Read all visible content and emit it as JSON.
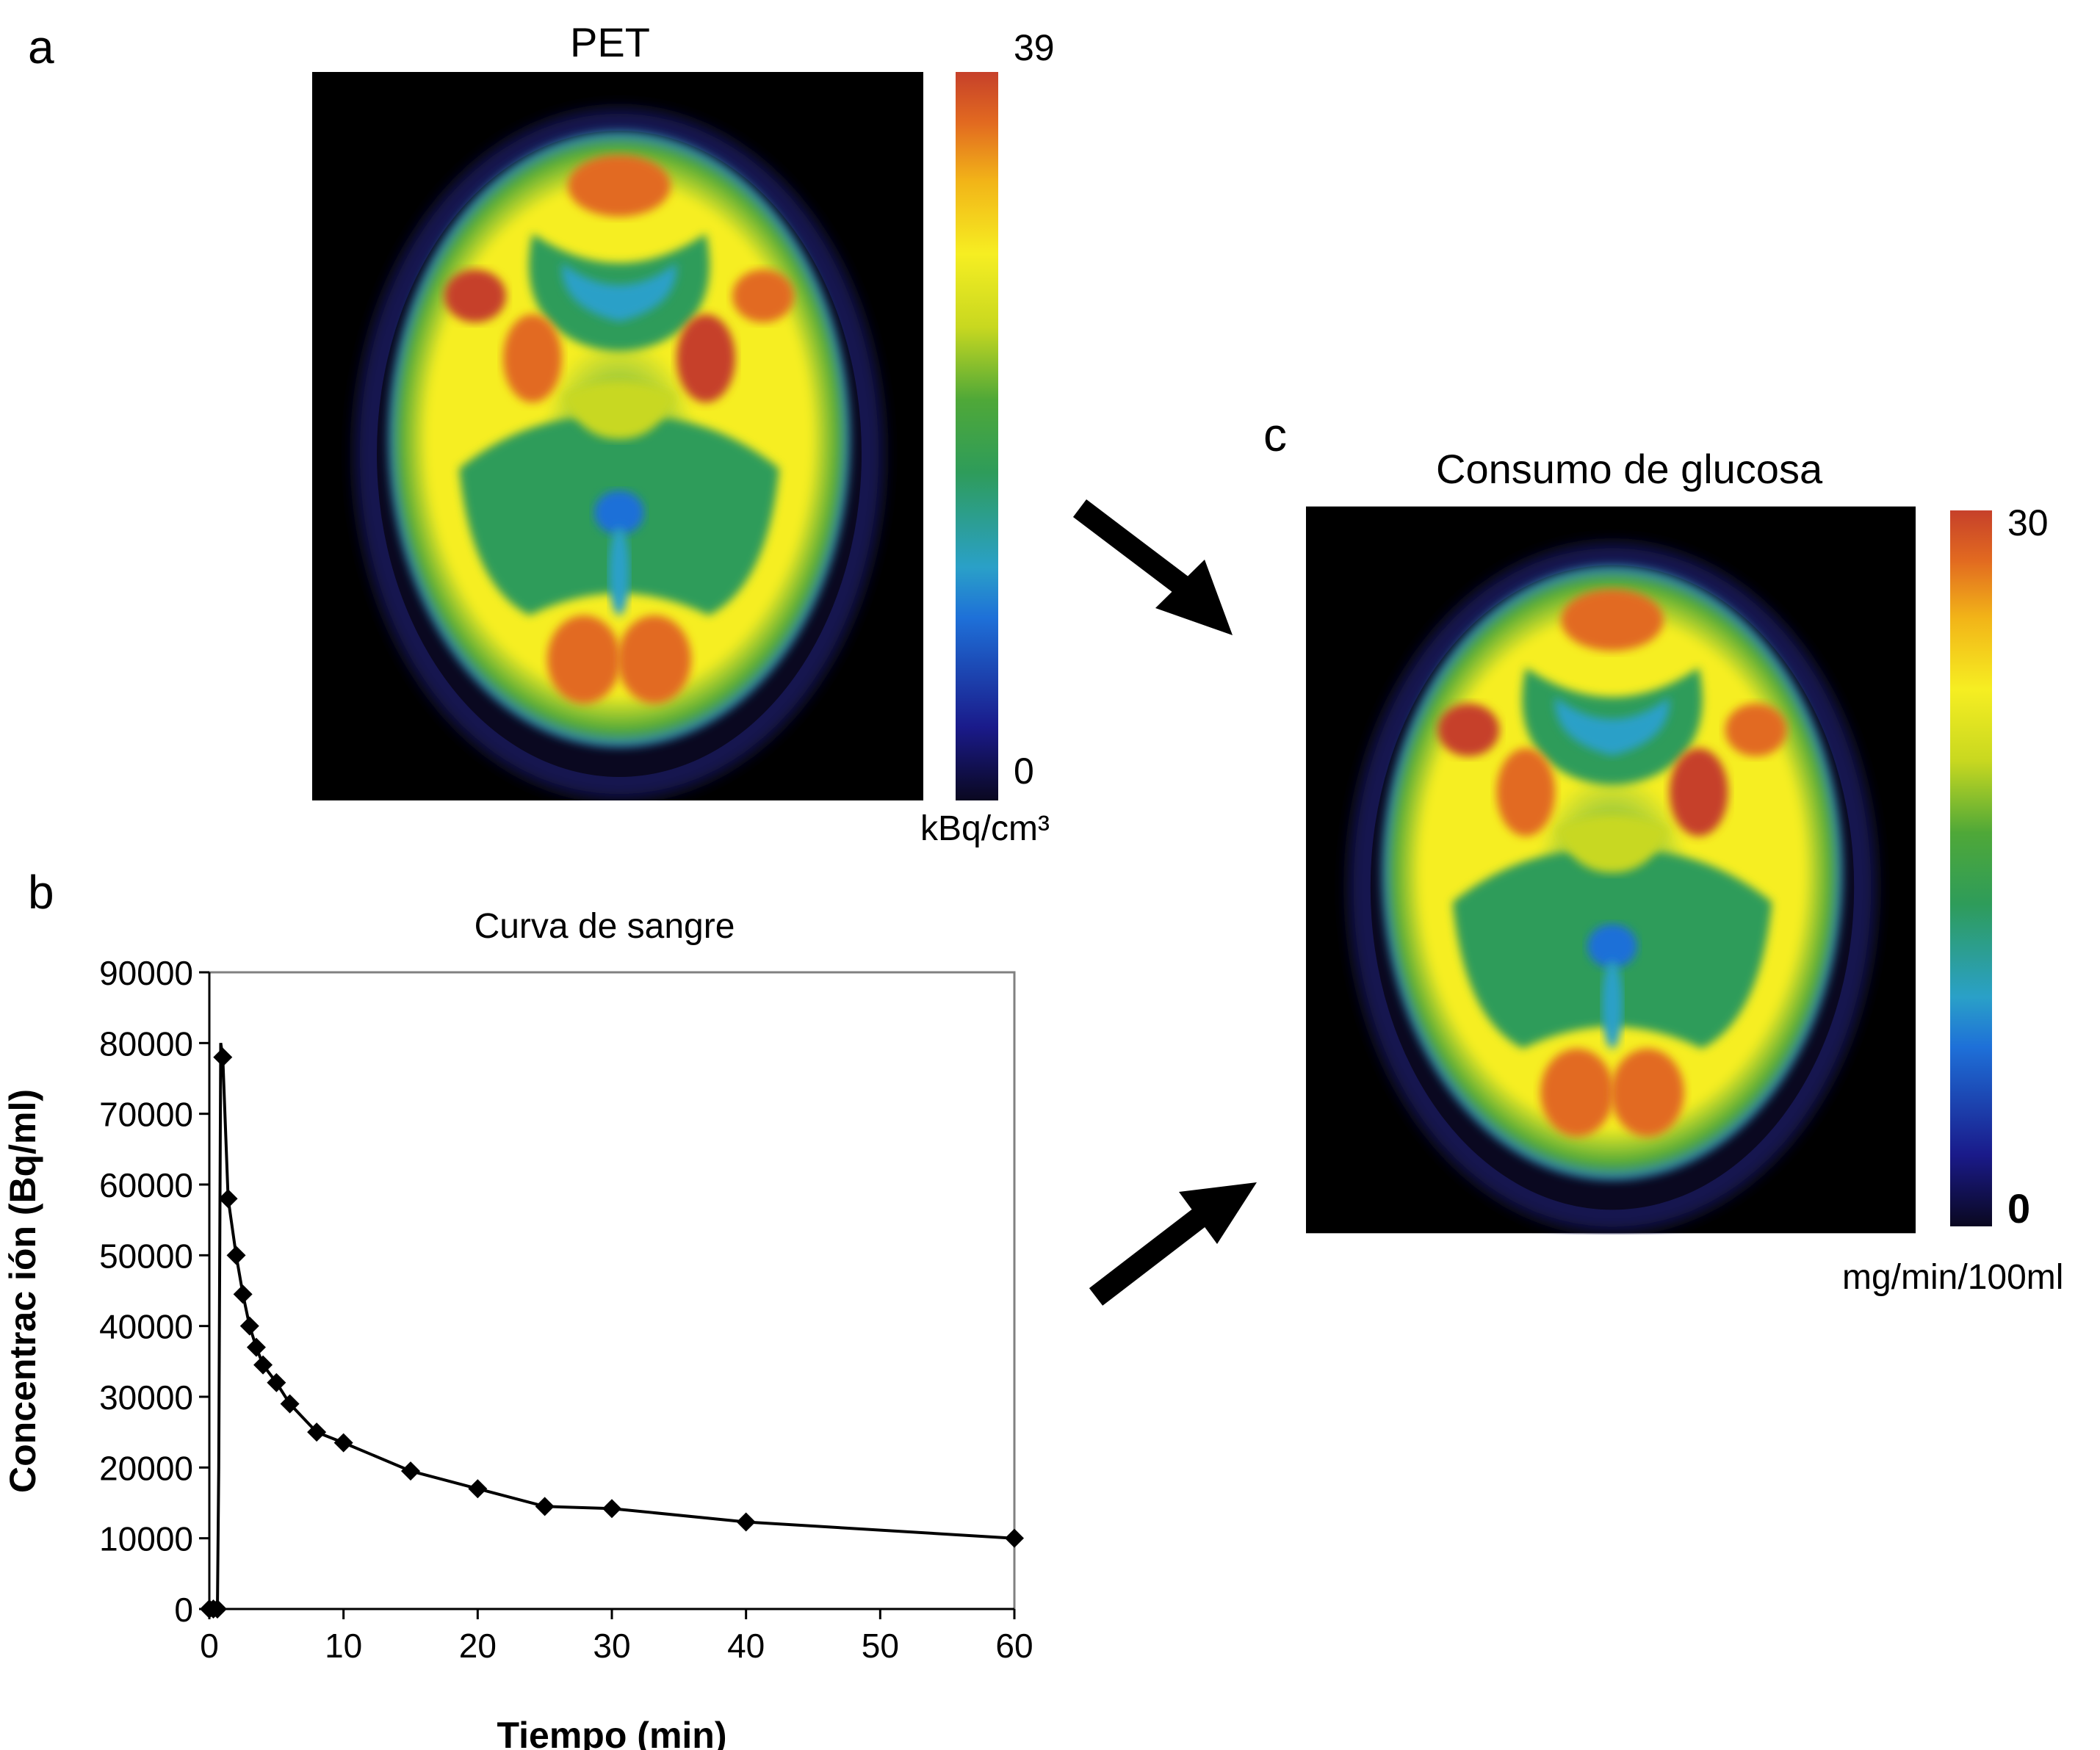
{
  "panels": {
    "a": {
      "letter": "a",
      "title": "PET",
      "scale_max": "39",
      "scale_min": "0",
      "unit": "kBq/cm³"
    },
    "b": {
      "letter": "b"
    },
    "c": {
      "letter": "c",
      "title": "Consumo de glucosa",
      "scale_max": "30",
      "scale_min": "0",
      "unit": "mg/min/100ml"
    }
  },
  "colors": {
    "colormap": [
      "#0a0820",
      "#1a1a8a",
      "#1e70d8",
      "#2aa0c8",
      "#2e9c5a",
      "#4fa838",
      "#c8d820",
      "#f6ee22",
      "#f2b418",
      "#e26a20",
      "#c6402a"
    ],
    "background": "#000000",
    "curve": "#000000"
  },
  "chart_data": {
    "type": "line",
    "title": "Curva de sangre",
    "xlabel": "Tiempo (min)",
    "ylabel": "Concentrac ión  (Bq/ml)",
    "xlim": [
      0,
      60
    ],
    "ylim": [
      0,
      90000
    ],
    "xticks": [
      0,
      10,
      20,
      30,
      40,
      50,
      60
    ],
    "yticks": [
      0,
      10000,
      20000,
      30000,
      40000,
      50000,
      60000,
      70000,
      80000,
      90000
    ],
    "grid": false,
    "legend": "none",
    "x": [
      0,
      0.3,
      0.6,
      1.0,
      1.4,
      2.0,
      2.5,
      3.0,
      3.5,
      4.0,
      5.0,
      6.0,
      8.0,
      10.0,
      15.0,
      20.0,
      25.0,
      30.0,
      40.0,
      60.0
    ],
    "y": [
      0,
      0,
      0,
      78000,
      58000,
      50000,
      44500,
      40000,
      37000,
      34500,
      32000,
      29000,
      25000,
      23500,
      19500,
      17000,
      14500,
      14200,
      12300,
      10000
    ],
    "line_only_x": [
      0.5,
      0.7,
      0.85
    ],
    "line_only_y": [
      0,
      20000,
      80000
    ]
  }
}
